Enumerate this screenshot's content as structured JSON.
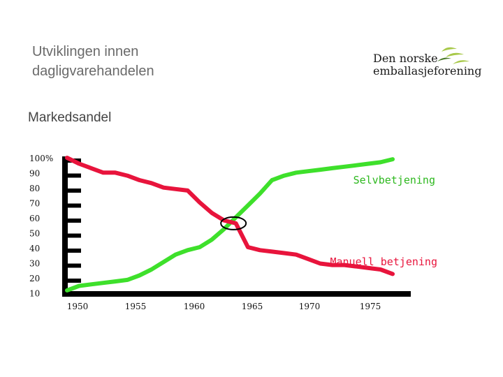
{
  "title": "Utviklingen innen dagligvarehandelen",
  "subtitle": "Markedsandel",
  "logo": {
    "line1": "Den norske",
    "line2": "emballasjeforening",
    "mark_color": "#a8c94a",
    "mark_dark_color": "#4a7a2a"
  },
  "chart_data": {
    "type": "line",
    "title": "Utviklingen innen dagligvarehandelen",
    "subtitle": "Markedsandel",
    "x_ticks": [
      1950,
      1955,
      1960,
      1965,
      1970,
      1975
    ],
    "y_ticks": [
      "100%",
      "90",
      "80",
      "70",
      "60",
      "50",
      "40",
      "30",
      "20",
      "10"
    ],
    "y_tick_values": [
      100,
      90,
      80,
      70,
      60,
      50,
      40,
      30,
      20,
      10
    ],
    "xlim": [
      1950,
      1978
    ],
    "ylim": [
      10,
      100
    ],
    "grid": false,
    "legend": "inline labels",
    "series": [
      {
        "name": "Selvbetjening",
        "color": "#3ee02b",
        "x": [
          1950,
          1951,
          1952,
          1953,
          1954,
          1955,
          1956,
          1957,
          1958,
          1959,
          1960,
          1961,
          1962,
          1963,
          1964,
          1965,
          1966,
          1967,
          1968,
          1969,
          1970,
          1971,
          1972,
          1973,
          1974,
          1975,
          1976,
          1977
        ],
        "y": [
          11,
          14,
          15,
          16,
          17,
          18,
          21,
          25,
          30,
          35,
          38,
          40,
          45,
          52,
          60,
          68,
          76,
          85,
          88,
          90,
          91,
          92,
          93,
          94,
          95,
          96,
          97,
          99
        ]
      },
      {
        "name": "Manuell betjening",
        "color": "#e8143c",
        "x": [
          1950,
          1951,
          1952,
          1953,
          1954,
          1955,
          1956,
          1957,
          1958,
          1959,
          1960,
          1961,
          1962,
          1963,
          1964,
          1965,
          1966,
          1967,
          1968,
          1969,
          1970,
          1971,
          1972,
          1973,
          1974,
          1975,
          1976,
          1977
        ],
        "y": [
          100,
          96,
          93,
          90,
          90,
          88,
          85,
          83,
          80,
          79,
          78,
          70,
          63,
          58,
          56,
          40,
          38,
          37,
          36,
          35,
          32,
          29,
          28,
          28,
          27,
          26,
          25,
          22
        ]
      }
    ],
    "annotations": [
      {
        "type": "ellipse",
        "text": "",
        "x": 1963.8,
        "y": 56
      }
    ]
  }
}
